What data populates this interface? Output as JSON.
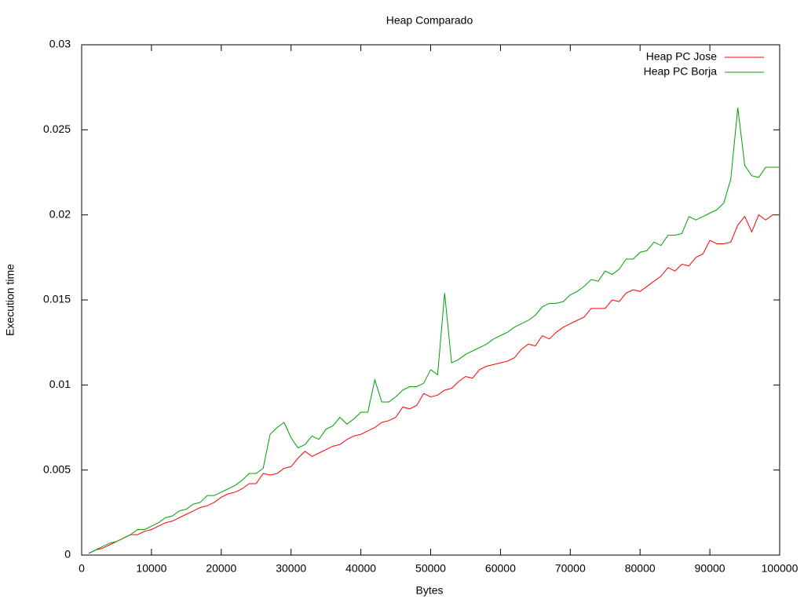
{
  "chart_data": {
    "type": "line",
    "title": "Heap Comparado",
    "x_label": "Bytes",
    "y_label": "Execution time",
    "x": [
      1000,
      2000,
      3000,
      4000,
      5000,
      6000,
      7000,
      8000,
      9000,
      10000,
      11000,
      12000,
      13000,
      14000,
      15000,
      16000,
      17000,
      18000,
      19000,
      20000,
      21000,
      22000,
      23000,
      24000,
      25000,
      26000,
      27000,
      28000,
      29000,
      30000,
      31000,
      32000,
      33000,
      34000,
      35000,
      36000,
      37000,
      38000,
      39000,
      40000,
      41000,
      42000,
      43000,
      44000,
      45000,
      46000,
      47000,
      48000,
      49000,
      50000,
      51000,
      52000,
      53000,
      54000,
      55000,
      56000,
      57000,
      58000,
      59000,
      60000,
      61000,
      62000,
      63000,
      64000,
      65000,
      66000,
      67000,
      68000,
      69000,
      70000,
      71000,
      72000,
      73000,
      74000,
      75000,
      76000,
      77000,
      78000,
      79000,
      80000,
      81000,
      82000,
      83000,
      84000,
      85000,
      86000,
      87000,
      88000,
      89000,
      90000,
      91000,
      92000,
      93000,
      94000,
      95000,
      96000,
      97000,
      98000,
      99000,
      100000
    ],
    "series": [
      {
        "name": "Heap PC Jose",
        "color": "#ff0000",
        "values": [
          0.0001,
          0.0003,
          0.0004,
          0.0006,
          0.0008,
          0.001,
          0.0012,
          0.0012,
          0.0014,
          0.0015,
          0.0017,
          0.0019,
          0.002,
          0.0022,
          0.0024,
          0.0026,
          0.0028,
          0.0029,
          0.0031,
          0.0034,
          0.0036,
          0.0037,
          0.0039,
          0.0042,
          0.0042,
          0.0048,
          0.0047,
          0.0048,
          0.0051,
          0.0052,
          0.0057,
          0.0061,
          0.0058,
          0.006,
          0.0062,
          0.0064,
          0.0065,
          0.0068,
          0.007,
          0.0071,
          0.0073,
          0.0075,
          0.0078,
          0.0079,
          0.0081,
          0.0087,
          0.0086,
          0.0088,
          0.0095,
          0.0093,
          0.0094,
          0.0097,
          0.0098,
          0.0102,
          0.0105,
          0.0104,
          0.0109,
          0.0111,
          0.0112,
          0.0113,
          0.0114,
          0.0116,
          0.0121,
          0.0124,
          0.0123,
          0.0129,
          0.0127,
          0.0131,
          0.0134,
          0.0136,
          0.0138,
          0.014,
          0.0145,
          0.0145,
          0.0145,
          0.015,
          0.0149,
          0.0154,
          0.0156,
          0.0155,
          0.0158,
          0.0161,
          0.0164,
          0.0169,
          0.0167,
          0.0171,
          0.017,
          0.0175,
          0.0177,
          0.0185,
          0.0183,
          0.0183,
          0.0184,
          0.0194,
          0.0199,
          0.019,
          0.02,
          0.0197,
          0.02,
          0.02
        ]
      },
      {
        "name": "Heap PC Borja",
        "color": "#00a000",
        "values": [
          0.0001,
          0.0003,
          0.0005,
          0.0007,
          0.0008,
          0.001,
          0.0012,
          0.0015,
          0.0015,
          0.0017,
          0.0019,
          0.0022,
          0.0023,
          0.0026,
          0.0027,
          0.003,
          0.0031,
          0.0035,
          0.0035,
          0.0037,
          0.0039,
          0.0041,
          0.0044,
          0.0048,
          0.0048,
          0.0051,
          0.0071,
          0.0075,
          0.0078,
          0.0069,
          0.0063,
          0.0065,
          0.007,
          0.0068,
          0.0074,
          0.0076,
          0.0081,
          0.0077,
          0.008,
          0.0084,
          0.0084,
          0.0103,
          0.009,
          0.009,
          0.0093,
          0.0097,
          0.0099,
          0.0099,
          0.0101,
          0.0109,
          0.0106,
          0.0154,
          0.0113,
          0.0115,
          0.0118,
          0.012,
          0.0122,
          0.0124,
          0.0127,
          0.0129,
          0.0131,
          0.0134,
          0.0136,
          0.0138,
          0.0141,
          0.0146,
          0.0148,
          0.0148,
          0.0149,
          0.0153,
          0.0155,
          0.0158,
          0.0162,
          0.0161,
          0.0167,
          0.0165,
          0.0168,
          0.0174,
          0.0174,
          0.0178,
          0.0179,
          0.0184,
          0.0182,
          0.0188,
          0.0188,
          0.0189,
          0.0199,
          0.0197,
          0.0199,
          0.0201,
          0.0203,
          0.0207,
          0.0221,
          0.0263,
          0.0229,
          0.0223,
          0.0222,
          0.0228,
          0.0228,
          0.0228
        ]
      }
    ],
    "xlim": [
      0,
      100000
    ],
    "xticks": [
      0,
      10000,
      20000,
      30000,
      40000,
      50000,
      60000,
      70000,
      80000,
      90000,
      100000
    ],
    "ylim": [
      0,
      0.03
    ],
    "yticks": [
      0,
      0.005,
      0.01,
      0.015,
      0.02,
      0.025,
      0.03
    ],
    "grid": false,
    "legend": "top-right"
  }
}
